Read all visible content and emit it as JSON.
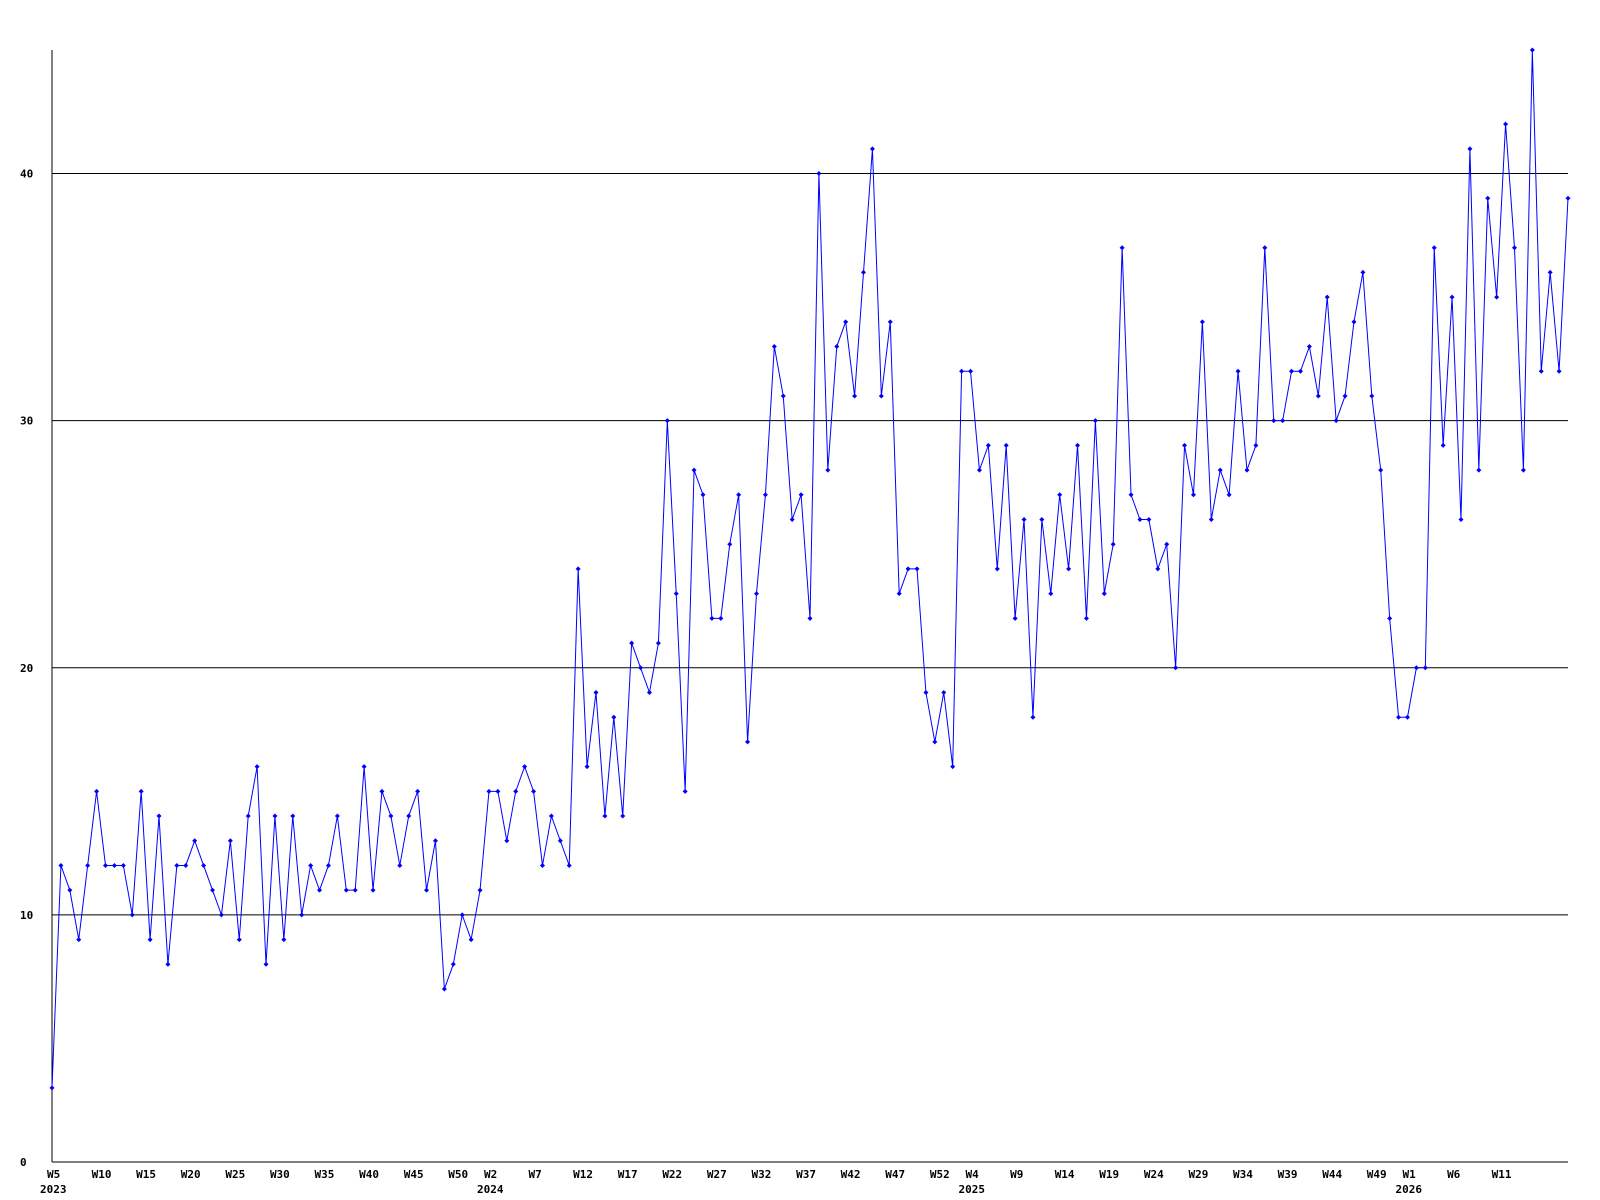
{
  "chart_data": {
    "type": "line",
    "categories": [
      "W5",
      null,
      null,
      null,
      null,
      "W10",
      null,
      null,
      null,
      null,
      "W15",
      null,
      null,
      null,
      null,
      "W20",
      null,
      null,
      null,
      null,
      "W25",
      null,
      null,
      null,
      null,
      "W30",
      null,
      null,
      null,
      null,
      "W35",
      null,
      null,
      null,
      null,
      "W40",
      null,
      null,
      null,
      null,
      "W45",
      null,
      null,
      null,
      null,
      "W50",
      null,
      null,
      null,
      "W2",
      null,
      null,
      null,
      null,
      "W7",
      null,
      null,
      null,
      null,
      "W12",
      null,
      null,
      null,
      null,
      "W17",
      null,
      null,
      null,
      null,
      "W22",
      null,
      null,
      null,
      null,
      "W27",
      null,
      null,
      null,
      null,
      "W32",
      null,
      null,
      null,
      null,
      "W37",
      null,
      null,
      null,
      null,
      "W42",
      null,
      null,
      null,
      null,
      "W47",
      null,
      null,
      null,
      null,
      "W52",
      null,
      null,
      null,
      "W4",
      null,
      null,
      null,
      null,
      "W9",
      null,
      null,
      null,
      null,
      "W14",
      null,
      null,
      null,
      null,
      "W19",
      null,
      null,
      null,
      null,
      "W24",
      null,
      null,
      null,
      null,
      "W29",
      null,
      null,
      null,
      null,
      "W34",
      null,
      null,
      null,
      null,
      "W39",
      null,
      null,
      null,
      null,
      "W44",
      null,
      null,
      null,
      null,
      "W49",
      null,
      null,
      null,
      "W1",
      null,
      null,
      null,
      null,
      "W6",
      null,
      null,
      null,
      null,
      "W11",
      null,
      null,
      null,
      null,
      null,
      null,
      null,
      null
    ],
    "category_years": [
      "2023",
      null,
      null,
      null,
      null,
      null,
      null,
      null,
      null,
      null,
      null,
      null,
      null,
      null,
      null,
      null,
      null,
      null,
      null,
      null,
      null,
      null,
      null,
      null,
      null,
      null,
      null,
      null,
      null,
      null,
      null,
      null,
      null,
      null,
      null,
      null,
      null,
      null,
      null,
      null,
      null,
      null,
      null,
      null,
      null,
      null,
      null,
      null,
      null,
      "2024",
      null,
      null,
      null,
      null,
      null,
      null,
      null,
      null,
      null,
      null,
      null,
      null,
      null,
      null,
      null,
      null,
      null,
      null,
      null,
      null,
      null,
      null,
      null,
      null,
      null,
      null,
      null,
      null,
      null,
      null,
      null,
      null,
      null,
      null,
      null,
      null,
      null,
      null,
      null,
      null,
      null,
      null,
      null,
      null,
      null,
      null,
      null,
      null,
      null,
      null,
      null,
      null,
      null,
      "2025",
      null,
      null,
      null,
      null,
      null,
      null,
      null,
      null,
      null,
      null,
      null,
      null,
      null,
      null,
      null,
      null,
      null,
      null,
      null,
      null,
      null,
      null,
      null,
      null,
      null,
      null,
      null,
      null,
      null,
      null,
      null,
      null,
      null,
      null,
      null,
      null,
      null,
      null,
      null,
      null,
      null,
      null,
      null,
      null,
      null,
      null,
      null,
      null,
      "2026",
      null,
      null,
      null,
      null,
      null,
      null,
      null,
      null,
      null,
      null,
      null,
      null,
      null,
      null,
      null,
      null,
      null,
      null
    ],
    "series": [
      {
        "color": "#0000ff",
        "values": [
          3,
          12,
          11,
          9,
          12,
          15,
          12,
          12,
          12,
          10,
          15,
          9,
          14,
          8,
          12,
          12,
          13,
          12,
          11,
          10,
          13,
          9,
          14,
          16,
          8,
          14,
          9,
          14,
          10,
          12,
          11,
          12,
          14,
          11,
          11,
          16,
          11,
          15,
          14,
          12,
          14,
          15,
          11,
          13,
          7,
          8,
          10,
          9,
          11,
          15,
          15,
          13,
          15,
          16,
          15,
          12,
          14,
          13,
          12,
          24,
          16,
          19,
          14,
          18,
          14,
          21,
          20,
          19,
          21,
          30,
          23,
          15,
          28,
          27,
          22,
          22,
          25,
          27,
          17,
          23,
          27,
          33,
          31,
          26,
          27,
          22,
          40,
          28,
          33,
          34,
          31,
          36,
          41,
          31,
          34,
          23,
          24,
          24,
          19,
          17,
          19,
          16,
          32,
          32,
          28,
          29,
          24,
          29,
          22,
          26,
          18,
          26,
          23,
          27,
          24,
          29,
          22,
          30,
          23,
          25,
          37,
          27,
          26,
          26,
          24,
          25,
          20,
          29,
          27,
          34,
          26,
          28,
          27,
          32,
          28,
          29,
          37,
          30,
          30,
          32,
          32,
          33,
          31,
          35,
          30,
          31,
          34,
          36,
          31,
          28,
          22,
          18,
          18,
          20,
          20,
          37,
          29,
          35,
          26,
          41,
          28,
          39,
          35,
          42,
          37,
          28,
          45,
          32,
          36,
          32,
          39
        ]
      }
    ],
    "ylim": [
      0,
      45
    ],
    "yticks": [
      0,
      10,
      20,
      30,
      40
    ],
    "grid": true
  }
}
